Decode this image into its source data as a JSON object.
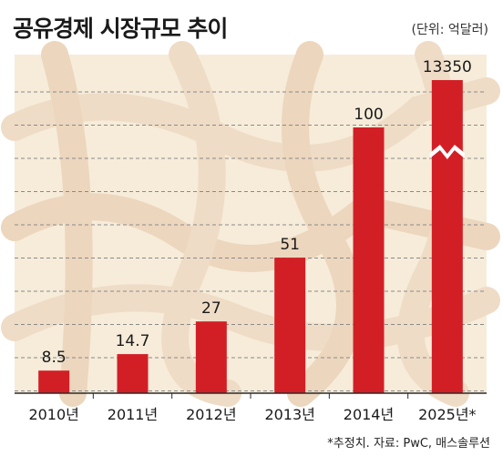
{
  "title": "공유경제 시장규모 추이",
  "unit_label": "(단위: 억달러)",
  "source": "*추정치. 자료: PwC, 매스솔루션",
  "colors": {
    "bar": "#d21f26",
    "background": "#f6ecd9",
    "gridline": "#8a8a8a",
    "axis": "#2b2b2b",
    "text": "#1a1a1a"
  },
  "background_image": "hands-linked-photo",
  "chart_data": {
    "type": "bar",
    "title": "공유경제 시장규모 추이",
    "unit": "(단위: 억달러)",
    "categories": [
      "2010년",
      "2011년",
      "2012년",
      "2013년",
      "2014년",
      "2025년*"
    ],
    "values": [
      8.5,
      14.7,
      27,
      51,
      100,
      13350
    ],
    "value_labels": [
      "8.5",
      "14.7",
      "27",
      "51",
      "100",
      "13350"
    ],
    "axis_break": true,
    "ylim": [
      0,
      155
    ],
    "grid": true,
    "legend": "none"
  }
}
